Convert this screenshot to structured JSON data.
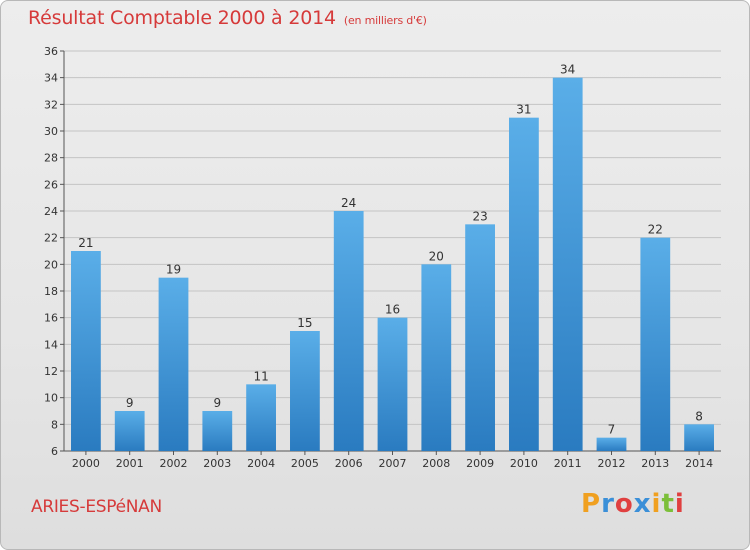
{
  "header": {
    "title": "Résultat Comptable 2000 à 2014",
    "subtitle": "(en milliers d'€)"
  },
  "footer": {
    "commune": "ARIES-ESPéNAN",
    "logo_text": "Proxiti"
  },
  "colors": {
    "title": "#d63a3a",
    "bar_light": "#5aaee8",
    "bar_dark": "#2a7bc0",
    "logo": [
      "#f0a020",
      "#3a8fd8",
      "#e04040",
      "#3a8fd8",
      "#f0a020",
      "#7cbf3a",
      "#e04040"
    ]
  },
  "chart_data": {
    "type": "bar",
    "categories": [
      "2000",
      "2001",
      "2002",
      "2003",
      "2004",
      "2005",
      "2006",
      "2007",
      "2008",
      "2009",
      "2010",
      "2011",
      "2012",
      "2013",
      "2014"
    ],
    "values": [
      21,
      9,
      19,
      9,
      11,
      15,
      24,
      16,
      20,
      23,
      31,
      34,
      7,
      22,
      8
    ],
    "ylim": [
      6,
      36
    ],
    "yticks": [
      6,
      8,
      10,
      12,
      14,
      16,
      18,
      20,
      22,
      24,
      26,
      28,
      30,
      32,
      34,
      36
    ],
    "grid": true,
    "data_labels": true
  }
}
